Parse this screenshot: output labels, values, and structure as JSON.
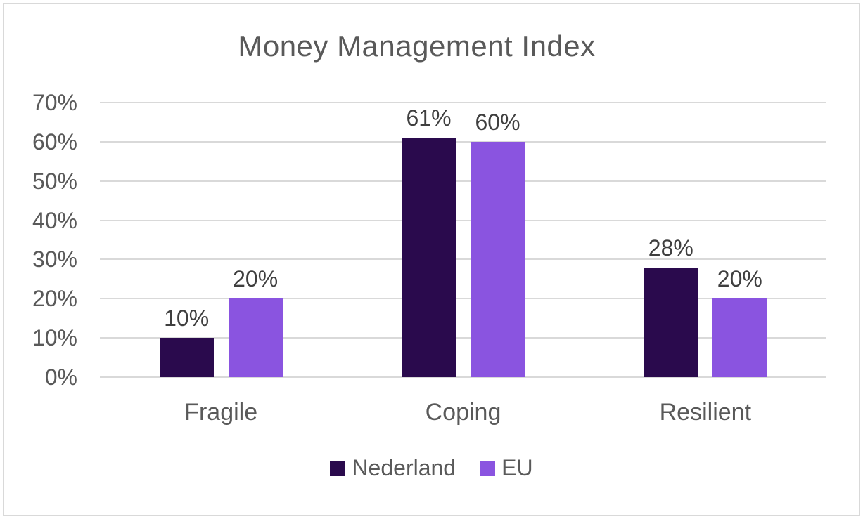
{
  "chart_data": {
    "type": "bar",
    "title": "Money Management Index",
    "categories": [
      "Fragile",
      "Coping",
      "Resilient"
    ],
    "series": [
      {
        "name": "Nederland",
        "color": "#2a0a4d",
        "values": [
          10,
          61,
          28
        ],
        "labels": [
          "10%",
          "61%",
          "28%"
        ]
      },
      {
        "name": "EU",
        "color": "#8a54e0",
        "values": [
          20,
          60,
          20
        ],
        "labels": [
          "20%",
          "60%",
          "20%"
        ]
      }
    ],
    "ylim": [
      0,
      70
    ],
    "ytick_interval": 10,
    "ytick_labels": [
      "0%",
      "10%",
      "20%",
      "30%",
      "40%",
      "50%",
      "60%",
      "70%"
    ],
    "grid": true,
    "legend_position": "bottom",
    "colors": {
      "grid": "#d9d9d9",
      "frame_border": "#d9d9d9",
      "axis_text": "#595959",
      "data_label_text": "#3f3f3f",
      "title_text": "#595959"
    }
  }
}
